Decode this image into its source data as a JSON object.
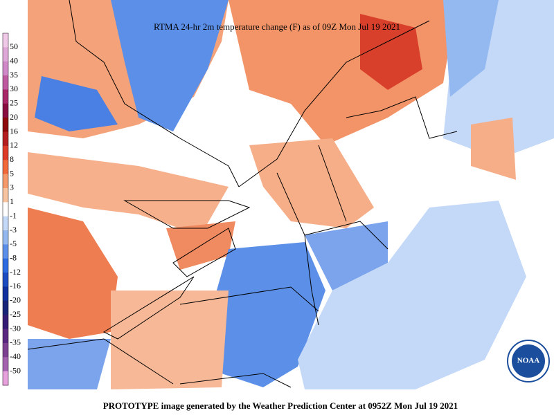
{
  "title": "RTMA 24-hr 2m temperature change (F) as of 09Z Mon Jul 19 2021",
  "footer": "PROTOTYPE image generated by the Weather Prediction Center at 0952Z Mon Jul 19 2021",
  "logo": "NOAA",
  "legend": {
    "labels": [
      "50",
      "40",
      "35",
      "30",
      "25",
      "20",
      "16",
      "12",
      "8",
      "5",
      "3",
      "1",
      "-1",
      "-3",
      "-5",
      "-8",
      "-12",
      "-16",
      "-20",
      "-25",
      "-30",
      "-35",
      "-40",
      "-50"
    ],
    "colors": [
      "#f0c8e8",
      "#e0a8d8",
      "#d088c8",
      "#c05aa0",
      "#a82868",
      "#881040",
      "#8c0a0a",
      "#b41e1e",
      "#dc3c28",
      "#f06a3c",
      "#f49a6c",
      "#f8c4a0",
      "#ffffff",
      "#c4d8f8",
      "#94b8f0",
      "#5c90e8",
      "#2c6ce0",
      "#1c4cc0",
      "#10309c",
      "#182478",
      "#341c74",
      "#5a2880",
      "#7e4090",
      "#a462b0",
      "#e8a0dc"
    ]
  }
}
